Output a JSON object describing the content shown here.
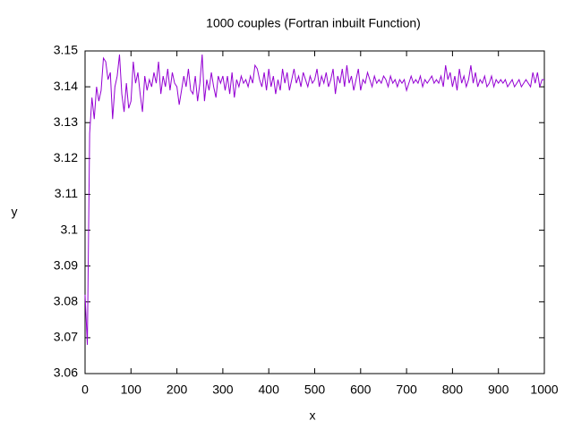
{
  "chart_data": {
    "type": "line",
    "title": "1000 couples (Fortran inbuilt Function)",
    "x_label": "x",
    "y_label": "y",
    "xlim": [
      0,
      1000
    ],
    "ylim": [
      3.06,
      3.15
    ],
    "xticks": [
      0,
      100,
      200,
      300,
      400,
      500,
      600,
      700,
      800,
      900,
      1000
    ],
    "yticks": [
      3.06,
      3.07,
      3.08,
      3.09,
      3.1,
      3.11,
      3.12,
      3.13,
      3.14,
      3.15
    ],
    "grid": false,
    "x": [
      0,
      5,
      10,
      15,
      20,
      25,
      30,
      35,
      40,
      45,
      50,
      55,
      60,
      65,
      70,
      75,
      80,
      85,
      90,
      95,
      100,
      105,
      110,
      115,
      120,
      125,
      130,
      135,
      140,
      145,
      150,
      155,
      160,
      165,
      170,
      175,
      180,
      185,
      190,
      195,
      200,
      205,
      210,
      215,
      220,
      225,
      230,
      235,
      240,
      245,
      250,
      255,
      260,
      265,
      270,
      275,
      280,
      285,
      290,
      295,
      300,
      305,
      310,
      315,
      320,
      325,
      330,
      335,
      340,
      345,
      350,
      355,
      360,
      365,
      370,
      375,
      380,
      385,
      390,
      395,
      400,
      405,
      410,
      415,
      420,
      425,
      430,
      435,
      440,
      445,
      450,
      455,
      460,
      465,
      470,
      475,
      480,
      485,
      490,
      495,
      500,
      505,
      510,
      515,
      520,
      525,
      530,
      535,
      540,
      545,
      550,
      555,
      560,
      565,
      570,
      575,
      580,
      585,
      590,
      595,
      600,
      605,
      610,
      615,
      620,
      625,
      630,
      635,
      640,
      645,
      650,
      655,
      660,
      665,
      670,
      675,
      680,
      685,
      690,
      695,
      700,
      705,
      710,
      715,
      720,
      725,
      730,
      735,
      740,
      745,
      750,
      755,
      760,
      765,
      770,
      775,
      780,
      785,
      790,
      795,
      800,
      805,
      810,
      815,
      820,
      825,
      830,
      835,
      840,
      845,
      850,
      855,
      860,
      865,
      870,
      875,
      880,
      885,
      890,
      895,
      900,
      905,
      910,
      915,
      920,
      925,
      930,
      935,
      940,
      945,
      950,
      955,
      960,
      965,
      970,
      975,
      980,
      985,
      990,
      995,
      1000
    ],
    "series": [
      {
        "color": "#9400d3",
        "values": [
          3.082,
          3.068,
          3.127,
          3.137,
          3.131,
          3.14,
          3.136,
          3.139,
          3.148,
          3.147,
          3.142,
          3.144,
          3.131,
          3.14,
          3.143,
          3.149,
          3.138,
          3.133,
          3.141,
          3.134,
          3.136,
          3.147,
          3.141,
          3.144,
          3.138,
          3.133,
          3.143,
          3.139,
          3.142,
          3.14,
          3.144,
          3.141,
          3.147,
          3.138,
          3.143,
          3.14,
          3.145,
          3.139,
          3.144,
          3.141,
          3.14,
          3.135,
          3.139,
          3.143,
          3.14,
          3.145,
          3.139,
          3.138,
          3.143,
          3.136,
          3.141,
          3.149,
          3.136,
          3.142,
          3.139,
          3.144,
          3.14,
          3.137,
          3.143,
          3.141,
          3.143,
          3.139,
          3.143,
          3.138,
          3.144,
          3.137,
          3.142,
          3.14,
          3.143,
          3.141,
          3.142,
          3.14,
          3.143,
          3.141,
          3.146,
          3.145,
          3.142,
          3.14,
          3.144,
          3.139,
          3.145,
          3.14,
          3.143,
          3.138,
          3.142,
          3.139,
          3.145,
          3.141,
          3.144,
          3.139,
          3.142,
          3.145,
          3.141,
          3.143,
          3.14,
          3.144,
          3.142,
          3.14,
          3.143,
          3.141,
          3.142,
          3.145,
          3.14,
          3.143,
          3.141,
          3.144,
          3.14,
          3.142,
          3.145,
          3.138,
          3.143,
          3.141,
          3.145,
          3.14,
          3.146,
          3.141,
          3.143,
          3.139,
          3.142,
          3.145,
          3.139,
          3.142,
          3.141,
          3.144,
          3.142,
          3.14,
          3.143,
          3.141,
          3.142,
          3.141,
          3.143,
          3.142,
          3.14,
          3.143,
          3.141,
          3.142,
          3.14,
          3.142,
          3.141,
          3.142,
          3.139,
          3.141,
          3.143,
          3.141,
          3.142,
          3.141,
          3.143,
          3.14,
          3.142,
          3.141,
          3.142,
          3.143,
          3.141,
          3.142,
          3.141,
          3.143,
          3.14,
          3.146,
          3.142,
          3.144,
          3.14,
          3.143,
          3.139,
          3.145,
          3.141,
          3.143,
          3.14,
          3.142,
          3.146,
          3.141,
          3.144,
          3.14,
          3.142,
          3.141,
          3.143,
          3.14,
          3.141,
          3.143,
          3.14,
          3.142,
          3.141,
          3.142,
          3.141,
          3.142,
          3.14,
          3.141,
          3.142,
          3.14,
          3.141,
          3.142,
          3.14,
          3.141,
          3.142,
          3.141,
          3.14,
          3.144,
          3.141,
          3.144,
          3.14,
          3.142,
          3.142
        ]
      }
    ]
  }
}
